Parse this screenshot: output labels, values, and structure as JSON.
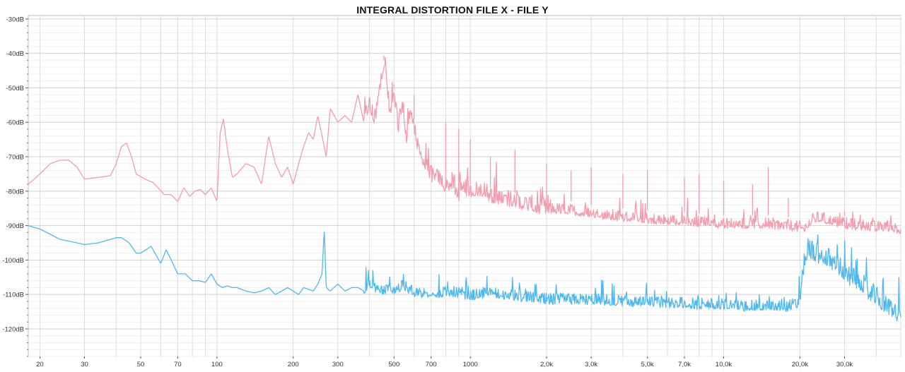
{
  "chart_data": {
    "type": "line",
    "title": "INTEGRAL DISTORTION FILE X - FILE Y",
    "xlabel": "",
    "ylabel": "",
    "x_scale": "log",
    "x_unit": "Hz",
    "xlim": [
      18,
      50000
    ],
    "ylim": [
      -128,
      -29
    ],
    "grid": true,
    "legend": "none",
    "x_ticks": [
      {
        "value": 20,
        "label": "20"
      },
      {
        "value": 30,
        "label": "30"
      },
      {
        "value": 50,
        "label": "50"
      },
      {
        "value": 70,
        "label": "70"
      },
      {
        "value": 100,
        "label": "100"
      },
      {
        "value": 200,
        "label": "200"
      },
      {
        "value": 300,
        "label": "300"
      },
      {
        "value": 500,
        "label": "500"
      },
      {
        "value": 700,
        "label": "700"
      },
      {
        "value": 1000,
        "label": "1000"
      },
      {
        "value": 2000,
        "label": "2,0k"
      },
      {
        "value": 3000,
        "label": "3,0k"
      },
      {
        "value": 5000,
        "label": "5,0k"
      },
      {
        "value": 7000,
        "label": "7,0k"
      },
      {
        "value": 10000,
        "label": "10,0k"
      },
      {
        "value": 20000,
        "label": "20,0k"
      },
      {
        "value": 30000,
        "label": "30,0k"
      }
    ],
    "y_ticks": [
      {
        "value": -30,
        "label": "-30dB"
      },
      {
        "value": -40,
        "label": "-40dB"
      },
      {
        "value": -50,
        "label": "-50dB"
      },
      {
        "value": -60,
        "label": "-60dB"
      },
      {
        "value": -70,
        "label": "-70dB"
      },
      {
        "value": -80,
        "label": "-80dB"
      },
      {
        "value": -90,
        "label": "-90dB"
      },
      {
        "value": -100,
        "label": "-100dB"
      },
      {
        "value": -110,
        "label": "-110dB"
      },
      {
        "value": -120,
        "label": "-120dB"
      }
    ],
    "series": [
      {
        "color": "#f59bac",
        "x": [
          18,
          20,
          22,
          24,
          26,
          28,
          30,
          34,
          38,
          40,
          42,
          44,
          46,
          48,
          52,
          56,
          62,
          66,
          70,
          74,
          78,
          82,
          86,
          90,
          95,
          100,
          103,
          106,
          110,
          115,
          120,
          130,
          140,
          150,
          160,
          170,
          180,
          190,
          200,
          210,
          220,
          230,
          240,
          250,
          260,
          270,
          280,
          300,
          320,
          340,
          360,
          380,
          400,
          420,
          440,
          460,
          480,
          500,
          520,
          540,
          560,
          580,
          600,
          620,
          660,
          700,
          750,
          800,
          850,
          900,
          950,
          1000,
          1100,
          1200,
          1400,
          1600,
          1800,
          2000,
          2500,
          3000,
          3500,
          4000,
          5000,
          6000,
          7000,
          8000,
          10000,
          12000,
          15000,
          18000,
          20000,
          21000,
          22000,
          24000,
          26000,
          30000,
          35000,
          40000,
          45000,
          50000
        ],
        "y": [
          -78,
          -75,
          -72,
          -71,
          -71,
          -73,
          -76.5,
          -76,
          -75.5,
          -72,
          -67,
          -66,
          -70,
          -75,
          -76.5,
          -77.5,
          -81,
          -81,
          -83,
          -79,
          -81.5,
          -80,
          -79.5,
          -81,
          -79,
          -83,
          -63,
          -59,
          -68,
          -76,
          -75,
          -72,
          -73,
          -78,
          -64,
          -72,
          -76,
          -73,
          -78,
          -72,
          -67,
          -63,
          -65,
          -58,
          -64,
          -70,
          -56,
          -60,
          -58,
          -60,
          -52,
          -60,
          -55,
          -60,
          -50,
          -42,
          -58,
          -52,
          -62,
          -55,
          -65,
          -56,
          -62,
          -68,
          -72,
          -76,
          -77,
          -79,
          -78,
          -82,
          -80,
          -81,
          -80,
          -82,
          -83,
          -84,
          -85,
          -85.5,
          -86,
          -87,
          -87.5,
          -88,
          -88.5,
          -89,
          -89,
          -89.5,
          -90,
          -90,
          -90,
          -90.5,
          -91,
          -91,
          -89,
          -88,
          -89,
          -90,
          -90.5,
          -91,
          -91,
          -91.5
        ],
        "peaks": [
          [
            456,
            -42
          ],
          [
            500,
            -50
          ],
          [
            600,
            -52
          ],
          [
            800,
            -60
          ],
          [
            900,
            -62
          ],
          [
            1000,
            -65
          ],
          [
            1200,
            -70
          ],
          [
            1500,
            -68
          ],
          [
            2000,
            -72
          ],
          [
            2500,
            -74
          ],
          [
            3000,
            -73
          ],
          [
            4000,
            -75
          ],
          [
            5000,
            -74
          ],
          [
            7000,
            -76
          ],
          [
            8000,
            -75
          ],
          [
            10000,
            -77
          ],
          [
            13000,
            -78
          ],
          [
            15000,
            -73
          ],
          [
            18000,
            -82
          ],
          [
            24000,
            -85
          ],
          [
            30000,
            -86
          ]
        ]
      },
      {
        "color": "#4db8f0",
        "x": [
          18,
          20,
          22,
          24,
          26,
          28,
          30,
          34,
          38,
          40,
          42,
          45,
          48,
          50,
          55,
          60,
          63,
          66,
          70,
          75,
          80,
          85,
          90,
          95,
          100,
          105,
          110,
          115,
          120,
          130,
          140,
          150,
          160,
          170,
          180,
          190,
          200,
          210,
          220,
          240,
          250,
          260,
          265,
          270,
          280,
          300,
          320,
          340,
          360,
          380,
          400,
          450,
          500,
          550,
          600,
          700,
          800,
          900,
          1000,
          1200,
          1500,
          2000,
          2500,
          3000,
          4000,
          5000,
          6000,
          7000,
          8000,
          10000,
          12000,
          15000,
          18000,
          19500,
          20000,
          20500,
          21000,
          21500,
          22000,
          23000,
          25000,
          28000,
          30000,
          35000,
          40000,
          45000,
          50000
        ],
        "y": [
          -90,
          -91,
          -92.5,
          -94,
          -94.5,
          -95,
          -95.5,
          -95,
          -94,
          -93.5,
          -93.5,
          -95,
          -98,
          -98,
          -96,
          -101,
          -97,
          -100,
          -104,
          -104,
          -106,
          -106,
          -106.5,
          -104,
          -107,
          -108,
          -107.5,
          -108,
          -108,
          -109,
          -109.5,
          -109,
          -108,
          -110,
          -109,
          -108,
          -109,
          -110,
          -108,
          -109,
          -107,
          -104,
          -91,
          -108,
          -109,
          -107,
          -109,
          -108,
          -108,
          -109,
          -108,
          -109,
          -109,
          -108,
          -110,
          -110,
          -110,
          -110,
          -111,
          -110,
          -111,
          -112,
          -112,
          -112,
          -112.5,
          -113,
          -113,
          -113,
          -113.5,
          -113.5,
          -114,
          -114,
          -114,
          -113,
          -111,
          -106,
          -100,
          -97,
          -98,
          -99,
          -100,
          -102,
          -105,
          -108,
          -112,
          -115,
          -117
        ]
      }
    ]
  }
}
